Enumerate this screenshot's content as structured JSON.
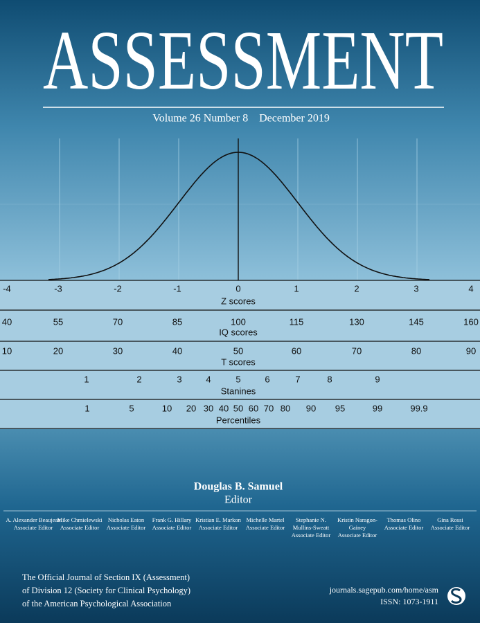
{
  "masthead": {
    "title": "ASSESSMENT",
    "volume": "Volume 26",
    "number": "Number 8",
    "date": "December  2019"
  },
  "scales": [
    {
      "name": "Z scores",
      "labels": [
        "-4",
        "-3",
        "-2",
        "-1",
        "0",
        "1",
        "2",
        "3",
        "4"
      ]
    },
    {
      "name": "IQ scores",
      "labels": [
        "40",
        "55",
        "70",
        "85",
        "100",
        "115",
        "130",
        "145",
        "160"
      ]
    },
    {
      "name": "T scores",
      "labels": [
        "10",
        "20",
        "30",
        "40",
        "50",
        "60",
        "70",
        "80",
        "90"
      ]
    },
    {
      "name": "Stanines",
      "labels": [
        "1",
        "2",
        "3",
        "4",
        "5",
        "6",
        "7",
        "8",
        "9"
      ]
    },
    {
      "name": "Percentiles",
      "labels": [
        "1",
        "5",
        "10",
        "20",
        "30",
        "40",
        "50",
        "60",
        "70",
        "80",
        "90",
        "95",
        "99",
        "99.9"
      ]
    }
  ],
  "editor": {
    "name": "Douglas B. Samuel",
    "role": "Editor"
  },
  "associate_editors": [
    {
      "name_lines": [
        "A. Alexander Beaujean"
      ],
      "role": "Associate Editor"
    },
    {
      "name_lines": [
        "Mike Chmielewski"
      ],
      "role": "Associate Editor"
    },
    {
      "name_lines": [
        "Nicholas Eaton"
      ],
      "role": "Associate Editor"
    },
    {
      "name_lines": [
        "Frank G. Hillary"
      ],
      "role": "Associate Editor"
    },
    {
      "name_lines": [
        "Kristian E. Markon"
      ],
      "role": "Associate Editor"
    },
    {
      "name_lines": [
        "Michelle Martel"
      ],
      "role": "Associate Editor"
    },
    {
      "name_lines": [
        "Stephanie N.",
        "Mullins-Sweatt"
      ],
      "role": "Associate Editor"
    },
    {
      "name_lines": [
        "Kristin Naragon-",
        "Gainey"
      ],
      "role": "Associate Editor"
    },
    {
      "name_lines": [
        "Thomas Olino"
      ],
      "role": "Associate Editor"
    },
    {
      "name_lines": [
        "Gina Rossi"
      ],
      "role": "Associate Editor"
    }
  ],
  "footer": {
    "left_lines": [
      "The Official Journal of Section IX (Assessment)",
      "of Division 12 (Society for Clinical Psychology)",
      "of the American Psychological Association"
    ],
    "url": "journals.sagepub.com/home/asm",
    "issn": "ISSN: 1073-1911"
  }
}
